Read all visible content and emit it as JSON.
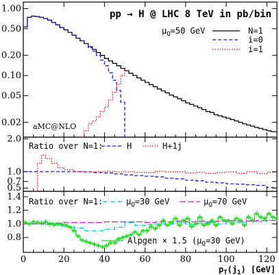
{
  "chart_data": [
    {
      "type": "line",
      "panel": "main",
      "title": "pp → H @ LHC 8 TeV in pb/bin",
      "annotation": "μQ=50 GeV",
      "watermark": "aMC@NLO",
      "ylog": true,
      "ylim": [
        0.012,
        1.25
      ],
      "xlim": [
        0,
        125
      ],
      "yticks": [
        {
          "v": 1.0,
          "t": "1.00"
        },
        {
          "v": 0.5,
          "t": "0.50"
        },
        {
          "v": 0.2,
          "t": "0.20"
        },
        {
          "v": 0.1,
          "t": "0.10"
        },
        {
          "v": 0.05,
          "t": "0.05"
        },
        {
          "v": 0.02,
          "t": "0.02"
        }
      ],
      "legend_position": "top-right",
      "series": [
        {
          "name": "N=1",
          "color": "#000000",
          "dash": "solid",
          "step": true,
          "x": [
            0,
            2,
            4,
            6,
            8,
            10,
            12,
            14,
            16,
            18,
            20,
            22,
            24,
            26,
            28,
            30,
            32,
            34,
            36,
            38,
            40,
            42,
            44,
            46,
            48,
            50,
            52,
            54,
            56,
            58,
            60,
            62,
            64,
            66,
            68,
            70,
            72,
            74,
            76,
            78,
            80,
            82,
            84,
            86,
            88,
            90,
            92,
            94,
            96,
            98,
            100,
            102,
            104,
            106,
            108,
            110,
            112,
            114,
            116,
            118,
            120,
            122,
            124
          ],
          "y": [
            0.53,
            0.74,
            0.77,
            0.76,
            0.74,
            0.71,
            0.67,
            0.62,
            0.57,
            0.52,
            0.48,
            0.44,
            0.4,
            0.36,
            0.33,
            0.3,
            0.27,
            0.245,
            0.22,
            0.2,
            0.18,
            0.165,
            0.152,
            0.14,
            0.128,
            0.118,
            0.108,
            0.1,
            0.092,
            0.085,
            0.079,
            0.073,
            0.068,
            0.063,
            0.059,
            0.055,
            0.051,
            0.048,
            0.045,
            0.042,
            0.039,
            0.037,
            0.035,
            0.033,
            0.031,
            0.029,
            0.028,
            0.026,
            0.025,
            0.024,
            0.023,
            0.022,
            0.021,
            0.02,
            0.019,
            0.0182,
            0.0175,
            0.0168,
            0.0162,
            0.0156,
            0.015,
            0.0145,
            0.0145
          ]
        },
        {
          "name": "i=0",
          "color": "#1b1bd8",
          "dash": "dashed",
          "step": true,
          "x": [
            0,
            2,
            4,
            6,
            8,
            10,
            12,
            14,
            16,
            18,
            20,
            22,
            24,
            26,
            28,
            30,
            32,
            34,
            36,
            38,
            40,
            42,
            44,
            46,
            48,
            50
          ],
          "y": [
            0.53,
            0.74,
            0.77,
            0.76,
            0.74,
            0.71,
            0.67,
            0.62,
            0.57,
            0.52,
            0.48,
            0.44,
            0.4,
            0.36,
            0.33,
            0.3,
            0.26,
            0.23,
            0.2,
            0.17,
            0.14,
            0.11,
            0.085,
            0.06,
            0.04,
            0.012
          ]
        },
        {
          "name": "i=1",
          "color": "#e01010",
          "dash": "dotted",
          "step": true,
          "x": [
            28,
            30,
            32,
            34,
            36,
            38,
            40,
            42,
            44,
            46,
            48,
            50
          ],
          "y": [
            0.012,
            0.015,
            0.019,
            0.021,
            0.024,
            0.029,
            0.034,
            0.043,
            0.056,
            0.074,
            0.1,
            0.118
          ]
        }
      ]
    },
    {
      "type": "line",
      "panel": "ratio1",
      "label": "Ratio over N=1:",
      "ylim": [
        0.4,
        2.05
      ],
      "xlim": [
        0,
        125
      ],
      "yticks": [
        {
          "v": 2.0,
          "t": "2.0"
        },
        {
          "v": 1.0,
          "t": "1.0"
        },
        {
          "v": 0.7,
          "t": "0.7"
        },
        {
          "v": 0.5,
          "t": "0.5"
        }
      ],
      "series": [
        {
          "name": "H",
          "color": "#1b1bd8",
          "dash": "dashed",
          "step": true,
          "x": [
            0,
            5,
            10,
            15,
            20,
            25,
            30,
            35,
            40,
            45,
            50,
            55,
            60,
            65,
            70,
            75,
            80,
            85,
            90,
            95,
            100,
            105,
            110,
            115,
            120,
            124
          ],
          "y": [
            1.0,
            1.0,
            1.0,
            1.0,
            1.0,
            1.0,
            0.99,
            0.97,
            0.96,
            0.93,
            0.9,
            0.88,
            0.86,
            0.84,
            0.8,
            0.78,
            0.74,
            0.72,
            0.68,
            0.66,
            0.63,
            0.62,
            0.6,
            0.58,
            0.52,
            0.52
          ]
        },
        {
          "name": "H+1j",
          "color": "#e01010",
          "dash": "dotted",
          "step": true,
          "x": [
            5,
            7,
            9,
            11,
            14,
            17,
            20,
            25,
            30,
            35,
            40,
            45,
            50,
            55,
            60,
            65,
            70,
            75,
            80,
            85,
            90,
            95,
            100,
            105,
            110,
            115,
            120,
            124
          ],
          "y": [
            0.4,
            1.25,
            1.5,
            1.4,
            1.25,
            1.12,
            1.06,
            1.0,
            0.99,
            1.0,
            1.01,
            0.99,
            1.0,
            0.98,
            0.97,
            1.01,
            0.99,
            1.0,
            0.96,
            0.98,
            0.95,
            0.97,
            0.99,
            0.95,
            1.0,
            0.94,
            0.98,
            0.98
          ]
        }
      ]
    },
    {
      "type": "line",
      "panel": "ratio2",
      "label": "Ratio over N=1:",
      "annotation": "Alpgen × 1.5 (μQ=30 GeV)",
      "ylim": [
        0.58,
        1.48
      ],
      "xlim": [
        0,
        125
      ],
      "xlabel": "pT(j1) [GeV]",
      "xticks": [
        0,
        20,
        40,
        60,
        80,
        100,
        120
      ],
      "yticks": [
        {
          "v": 1.4,
          "t": "1.4"
        },
        {
          "v": 1.2,
          "t": "1.2"
        },
        {
          "v": 1.0,
          "t": "1.0"
        },
        {
          "v": 0.8,
          "t": "0.8"
        }
      ],
      "series": [
        {
          "name": "μQ=30 GeV",
          "color": "#00c8e0",
          "dash": "dashdot",
          "step": true,
          "x": [
            0,
            5,
            10,
            15,
            20,
            25,
            30,
            35,
            40,
            45,
            50,
            55,
            60,
            65,
            70,
            75,
            80,
            85,
            90,
            95,
            100,
            105,
            110,
            115,
            120,
            124
          ],
          "y": [
            1.0,
            1.0,
            0.99,
            0.98,
            0.96,
            0.94,
            0.9,
            0.9,
            0.92,
            0.95,
            1.02,
            0.98,
            0.99,
            1.0,
            1.0,
            1.02,
            1.0,
            1.01,
            1.02,
            1.0,
            1.03,
            1.02,
            1.04,
            1.03,
            1.05,
            1.05
          ]
        },
        {
          "name": "μQ=70 GeV",
          "color": "#d020d0",
          "dash": "longdash",
          "step": true,
          "x": [
            0,
            5,
            10,
            15,
            20,
            25,
            30,
            35,
            40,
            45,
            50,
            55,
            60,
            65,
            70,
            75,
            80,
            85,
            90,
            95,
            100,
            105,
            110,
            115,
            120,
            124
          ],
          "y": [
            1.0,
            1.0,
            1.01,
            1.01,
            1.02,
            1.02,
            1.02,
            1.02,
            1.03,
            1.03,
            1.03,
            1.03,
            1.02,
            1.03,
            1.03,
            1.04,
            1.03,
            1.04,
            1.03,
            1.04,
            1.05,
            1.04,
            1.04,
            1.05,
            1.05,
            1.05
          ]
        },
        {
          "name": "Alpgen × 1.5 (μQ=30 GeV)",
          "color": "#22d822",
          "dash": "solid",
          "step": true,
          "markers": true,
          "x": [
            0,
            2,
            4,
            6,
            8,
            10,
            12,
            14,
            16,
            18,
            20,
            22,
            24,
            26,
            28,
            30,
            32,
            34,
            36,
            38,
            40,
            42,
            44,
            46,
            48,
            50,
            52,
            54,
            56,
            58,
            60,
            62,
            64,
            66,
            68,
            70,
            72,
            74,
            76,
            78,
            80,
            82,
            84,
            86,
            88,
            90,
            92,
            94,
            96,
            98,
            100,
            102,
            104,
            106,
            108,
            110,
            112,
            114,
            116,
            118,
            120,
            122,
            124
          ],
          "y": [
            1.02,
            1.0,
            1.03,
            1.02,
            1.01,
            1.03,
            1.0,
            0.99,
            1.0,
            0.99,
            0.98,
            0.95,
            0.9,
            0.82,
            0.76,
            0.74,
            0.72,
            0.7,
            0.68,
            0.66,
            0.68,
            0.72,
            0.72,
            0.78,
            0.8,
            0.82,
            0.84,
            0.88,
            0.84,
            0.9,
            0.9,
            0.96,
            0.93,
            0.98,
            1.05,
            0.98,
            1.02,
            1.08,
            0.98,
            1.05,
            1.08,
            0.96,
            1.0,
            1.1,
            0.98,
            1.0,
            1.05,
            0.98,
            1.1,
            1.05,
            1.05,
            1.0,
            1.08,
            1.05,
            0.98,
            1.1,
            1.05,
            1.15,
            1.1,
            1.08,
            1.15,
            1.1,
            1.08
          ]
        }
      ]
    }
  ],
  "text": {
    "title": "pp → H @ LHC 8 TeV in pb/bin",
    "mu_main_sym": "μ",
    "mu_main_sub": "Q",
    "mu_main_val": "=50 GeV",
    "watermark": "aMC@NLO",
    "leg_n1": "N=1",
    "leg_i0": "i=0",
    "leg_i1": "i=1",
    "r1_label": "Ratio over N=1:",
    "r1_h": "H",
    "r1_hj": "H+1j",
    "r2_label": "Ratio over N=1:",
    "r2_mu30_sym": "μ",
    "r2_mu30_sub": "Q",
    "r2_mu30_val": "=30 GeV",
    "r2_mu70_sym": "μ",
    "r2_mu70_sub": "Q",
    "r2_mu70_val": "=70 GeV",
    "alpgen_pre": "Alpgen × 1.5 (",
    "alpgen_sym": "μ",
    "alpgen_sub": "Q",
    "alpgen_post": "=30 GeV)",
    "xlabel_p": "p",
    "xlabel_sub1": "T",
    "xlabel_mid": "(j",
    "xlabel_sub2": "1",
    "xlabel_post": ") [GeV]"
  },
  "colors": {
    "n1": "#000000",
    "i0": "#1b1bd8",
    "i1": "#e01010",
    "mu30": "#00c8e0",
    "mu70": "#d020d0",
    "alpgen": "#22d822"
  }
}
